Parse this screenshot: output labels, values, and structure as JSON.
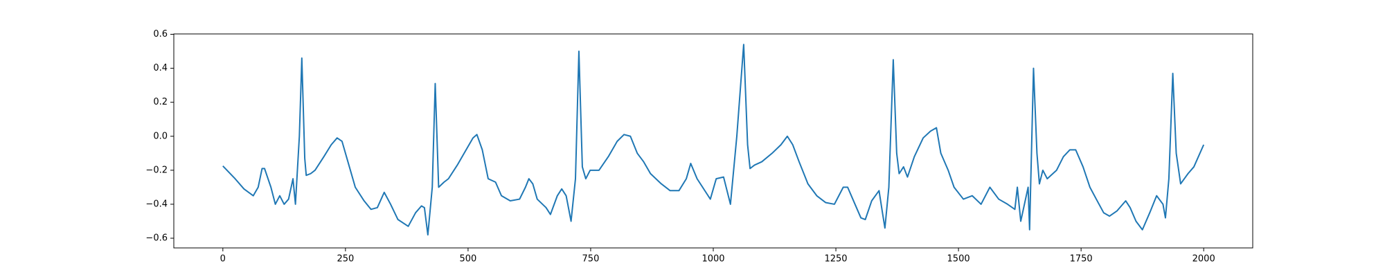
{
  "chart_data": {
    "type": "line",
    "color": "#1f77b4",
    "x": [
      0,
      25,
      43,
      62,
      72,
      80,
      85,
      98,
      107,
      116,
      125,
      134,
      143,
      148,
      156,
      161,
      167,
      170,
      179,
      188,
      206,
      221,
      233,
      243,
      252,
      270,
      288,
      302,
      315,
      329,
      342,
      357,
      378,
      393,
      405,
      411,
      418,
      427,
      433,
      440,
      451,
      460,
      478,
      496,
      510,
      518,
      529,
      541,
      556,
      568,
      586,
      605,
      617,
      624,
      632,
      641,
      659,
      668,
      682,
      691,
      700,
      710,
      719,
      726,
      733,
      740,
      749,
      767,
      786,
      804,
      818,
      831,
      845,
      858,
      872,
      894,
      912,
      930,
      945,
      954,
      967,
      985,
      994,
      1006,
      1021,
      1035,
      1048,
      1062,
      1070,
      1075,
      1084,
      1099,
      1120,
      1138,
      1151,
      1162,
      1175,
      1193,
      1211,
      1229,
      1247,
      1265,
      1274,
      1289,
      1301,
      1310,
      1323,
      1338,
      1345,
      1350,
      1358,
      1367,
      1374,
      1379,
      1388,
      1396,
      1410,
      1428,
      1443,
      1455,
      1464,
      1479,
      1491,
      1510,
      1528,
      1546,
      1564,
      1582,
      1600,
      1615,
      1620,
      1627,
      1636,
      1642,
      1645,
      1653,
      1660,
      1665,
      1672,
      1681,
      1700,
      1714,
      1727,
      1739,
      1754,
      1768,
      1781,
      1796,
      1808,
      1823,
      1841,
      1850,
      1862,
      1875,
      1890,
      1904,
      1917,
      1922,
      1929,
      1937,
      1944,
      1953,
      1968,
      1980,
      2000
    ],
    "values": [
      -0.175,
      -0.25,
      -0.31,
      -0.35,
      -0.3,
      -0.19,
      -0.19,
      -0.3,
      -0.4,
      -0.35,
      -0.4,
      -0.37,
      -0.25,
      -0.4,
      0.0,
      0.46,
      -0.13,
      -0.23,
      -0.22,
      -0.2,
      -0.12,
      -0.05,
      -0.01,
      -0.03,
      -0.12,
      -0.3,
      -0.38,
      -0.43,
      -0.42,
      -0.33,
      -0.4,
      -0.49,
      -0.53,
      -0.45,
      -0.41,
      -0.42,
      -0.58,
      -0.3,
      0.31,
      -0.3,
      -0.27,
      -0.25,
      -0.17,
      -0.08,
      -0.01,
      0.01,
      -0.08,
      -0.25,
      -0.27,
      -0.35,
      -0.38,
      -0.37,
      -0.3,
      -0.25,
      -0.28,
      -0.37,
      -0.42,
      -0.46,
      -0.35,
      -0.31,
      -0.35,
      -0.5,
      -0.25,
      0.5,
      -0.18,
      -0.25,
      -0.2,
      -0.2,
      -0.12,
      -0.03,
      0.01,
      0.0,
      -0.1,
      -0.15,
      -0.22,
      -0.28,
      -0.32,
      -0.32,
      -0.25,
      -0.16,
      -0.25,
      -0.33,
      -0.37,
      -0.25,
      -0.24,
      -0.4,
      0.0,
      0.54,
      -0.05,
      -0.19,
      -0.17,
      -0.15,
      -0.1,
      -0.05,
      0.0,
      -0.05,
      -0.15,
      -0.28,
      -0.35,
      -0.39,
      -0.4,
      -0.3,
      -0.3,
      -0.4,
      -0.48,
      -0.49,
      -0.38,
      -0.32,
      -0.45,
      -0.54,
      -0.3,
      0.45,
      -0.1,
      -0.22,
      -0.18,
      -0.24,
      -0.12,
      -0.01,
      0.03,
      0.05,
      -0.1,
      -0.2,
      -0.3,
      -0.37,
      -0.35,
      -0.4,
      -0.3,
      -0.37,
      -0.4,
      -0.43,
      -0.3,
      -0.5,
      -0.38,
      -0.3,
      -0.55,
      0.4,
      -0.1,
      -0.28,
      -0.2,
      -0.25,
      -0.2,
      -0.12,
      -0.08,
      -0.08,
      -0.18,
      -0.3,
      -0.37,
      -0.45,
      -0.47,
      -0.44,
      -0.38,
      -0.42,
      -0.5,
      -0.55,
      -0.45,
      -0.35,
      -0.4,
      -0.48,
      -0.25,
      0.37,
      -0.1,
      -0.28,
      -0.22,
      -0.18,
      -0.05
    ],
    "xlim": [
      -100,
      2100
    ],
    "ylim": [
      -0.657,
      0.602
    ],
    "xticks": [
      0,
      250,
      500,
      750,
      1000,
      1250,
      1500,
      1750,
      2000
    ],
    "yticks": [
      {
        "value": -0.6,
        "label": "−0.6"
      },
      {
        "value": -0.4,
        "label": "−0.4"
      },
      {
        "value": -0.2,
        "label": "−0.2"
      },
      {
        "value": 0,
        "label": "0.0"
      },
      0.2,
      0.4,
      0.6
    ]
  }
}
